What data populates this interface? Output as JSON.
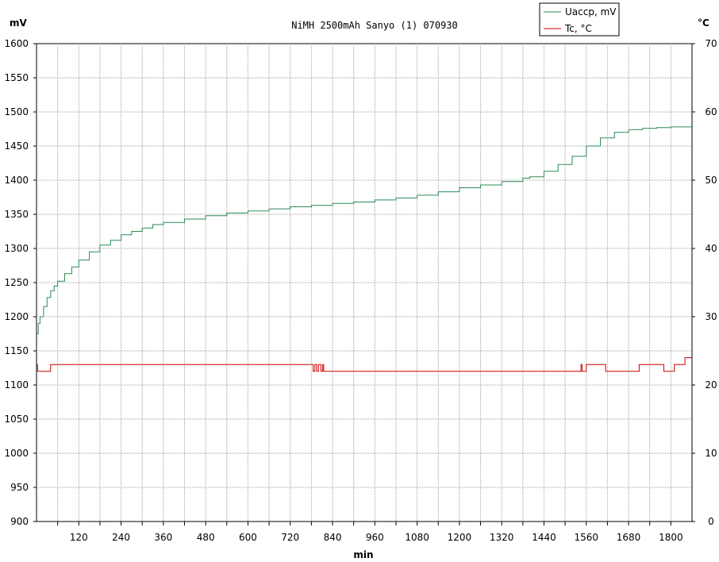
{
  "chart_data": {
    "type": "line",
    "title": "NiMH 2500mAh Sanyo (1) 070930",
    "xlabel": "min",
    "ylabel_left": "mV",
    "ylabel_right": "°C",
    "xlim": [
      0,
      1860
    ],
    "ylim_left": [
      900,
      1600
    ],
    "ylim_right": [
      0,
      70
    ],
    "x_ticks": [
      120,
      240,
      360,
      480,
      600,
      720,
      840,
      960,
      1080,
      1200,
      1320,
      1440,
      1560,
      1680,
      1800
    ],
    "y_ticks_left": [
      900,
      950,
      1000,
      1050,
      1100,
      1150,
      1200,
      1250,
      1300,
      1350,
      1400,
      1450,
      1500,
      1550,
      1600
    ],
    "y_ticks_right": [
      0,
      10,
      20,
      30,
      40,
      50,
      60,
      70
    ],
    "grid": true,
    "legend_position": "top-right",
    "series": [
      {
        "name": "Uaccp, mV",
        "color": "#2e8b57",
        "axis": "left",
        "x": [
          0,
          5,
          10,
          20,
          30,
          40,
          50,
          60,
          80,
          100,
          120,
          150,
          180,
          210,
          240,
          270,
          300,
          330,
          360,
          420,
          480,
          540,
          600,
          660,
          720,
          780,
          840,
          900,
          960,
          1020,
          1080,
          1140,
          1200,
          1260,
          1320,
          1380,
          1400,
          1440,
          1480,
          1520,
          1560,
          1600,
          1640,
          1680,
          1720,
          1760,
          1800,
          1860
        ],
        "y": [
          1175,
          1190,
          1200,
          1215,
          1228,
          1238,
          1245,
          1252,
          1263,
          1273,
          1283,
          1295,
          1305,
          1312,
          1320,
          1325,
          1330,
          1335,
          1338,
          1343,
          1348,
          1352,
          1355,
          1358,
          1361,
          1363,
          1366,
          1368,
          1371,
          1374,
          1378,
          1383,
          1389,
          1393,
          1398,
          1403,
          1405,
          1413,
          1423,
          1435,
          1450,
          1462,
          1470,
          1474,
          1476,
          1477,
          1478,
          1478
        ]
      },
      {
        "name": "Tc, °C",
        "color": "#cc0000",
        "axis": "right",
        "x": [
          0,
          3,
          3,
          40,
          40,
          785,
          785,
          790,
          790,
          795,
          795,
          800,
          800,
          807,
          807,
          812,
          812,
          815,
          815,
          1545,
          1545,
          1548,
          1548,
          1560,
          1560,
          1615,
          1615,
          1710,
          1710,
          1780,
          1780,
          1810,
          1810,
          1840,
          1840,
          1860
        ],
        "y": [
          23,
          23,
          22,
          22,
          23,
          23,
          22,
          22,
          23,
          23,
          22,
          22,
          23,
          23,
          22,
          22,
          23,
          23,
          22,
          22,
          23,
          23,
          22,
          22,
          23,
          23,
          22,
          22,
          23,
          23,
          22,
          22,
          23,
          23,
          24,
          24
        ]
      }
    ]
  }
}
